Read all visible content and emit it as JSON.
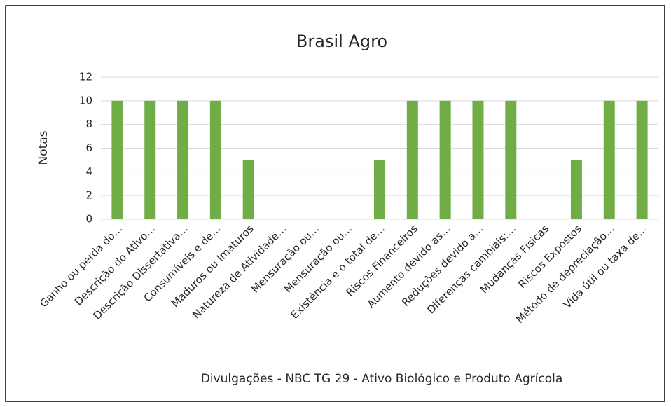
{
  "chart_data": {
    "type": "bar",
    "title": "Brasil Agro",
    "x_label": "Divulgações - NBC TG 29  - Ativo Biológico e Produto Agrícola",
    "y_label": "Notas",
    "categories": [
      "Ganho ou perda do…",
      "Descrição do Ativo…",
      "Descrição Dissertativa…",
      "Consumíveis e de…",
      "Maduros ou Imaturos",
      "Natureza de Atividade…",
      "Mensuração ou…",
      "Mensuração ou…",
      "Existência e o total de…",
      "Riscos Financeiros",
      "Aumento devido as…",
      "Reduções devido a…",
      "Diferenças cambiais:…",
      "Mudanças Físicas",
      "Riscos Expostos",
      "Método de depreciação…",
      "Vida útil ou taxa de…"
    ],
    "values": [
      10,
      10,
      10,
      10,
      5,
      0,
      0,
      0,
      5,
      10,
      10,
      10,
      10,
      0,
      5,
      10,
      10
    ],
    "color": "#70ad47",
    "ylim": [
      0,
      12
    ],
    "yticks": [
      0,
      2,
      4,
      6,
      8,
      10,
      12
    ],
    "grid": true
  }
}
